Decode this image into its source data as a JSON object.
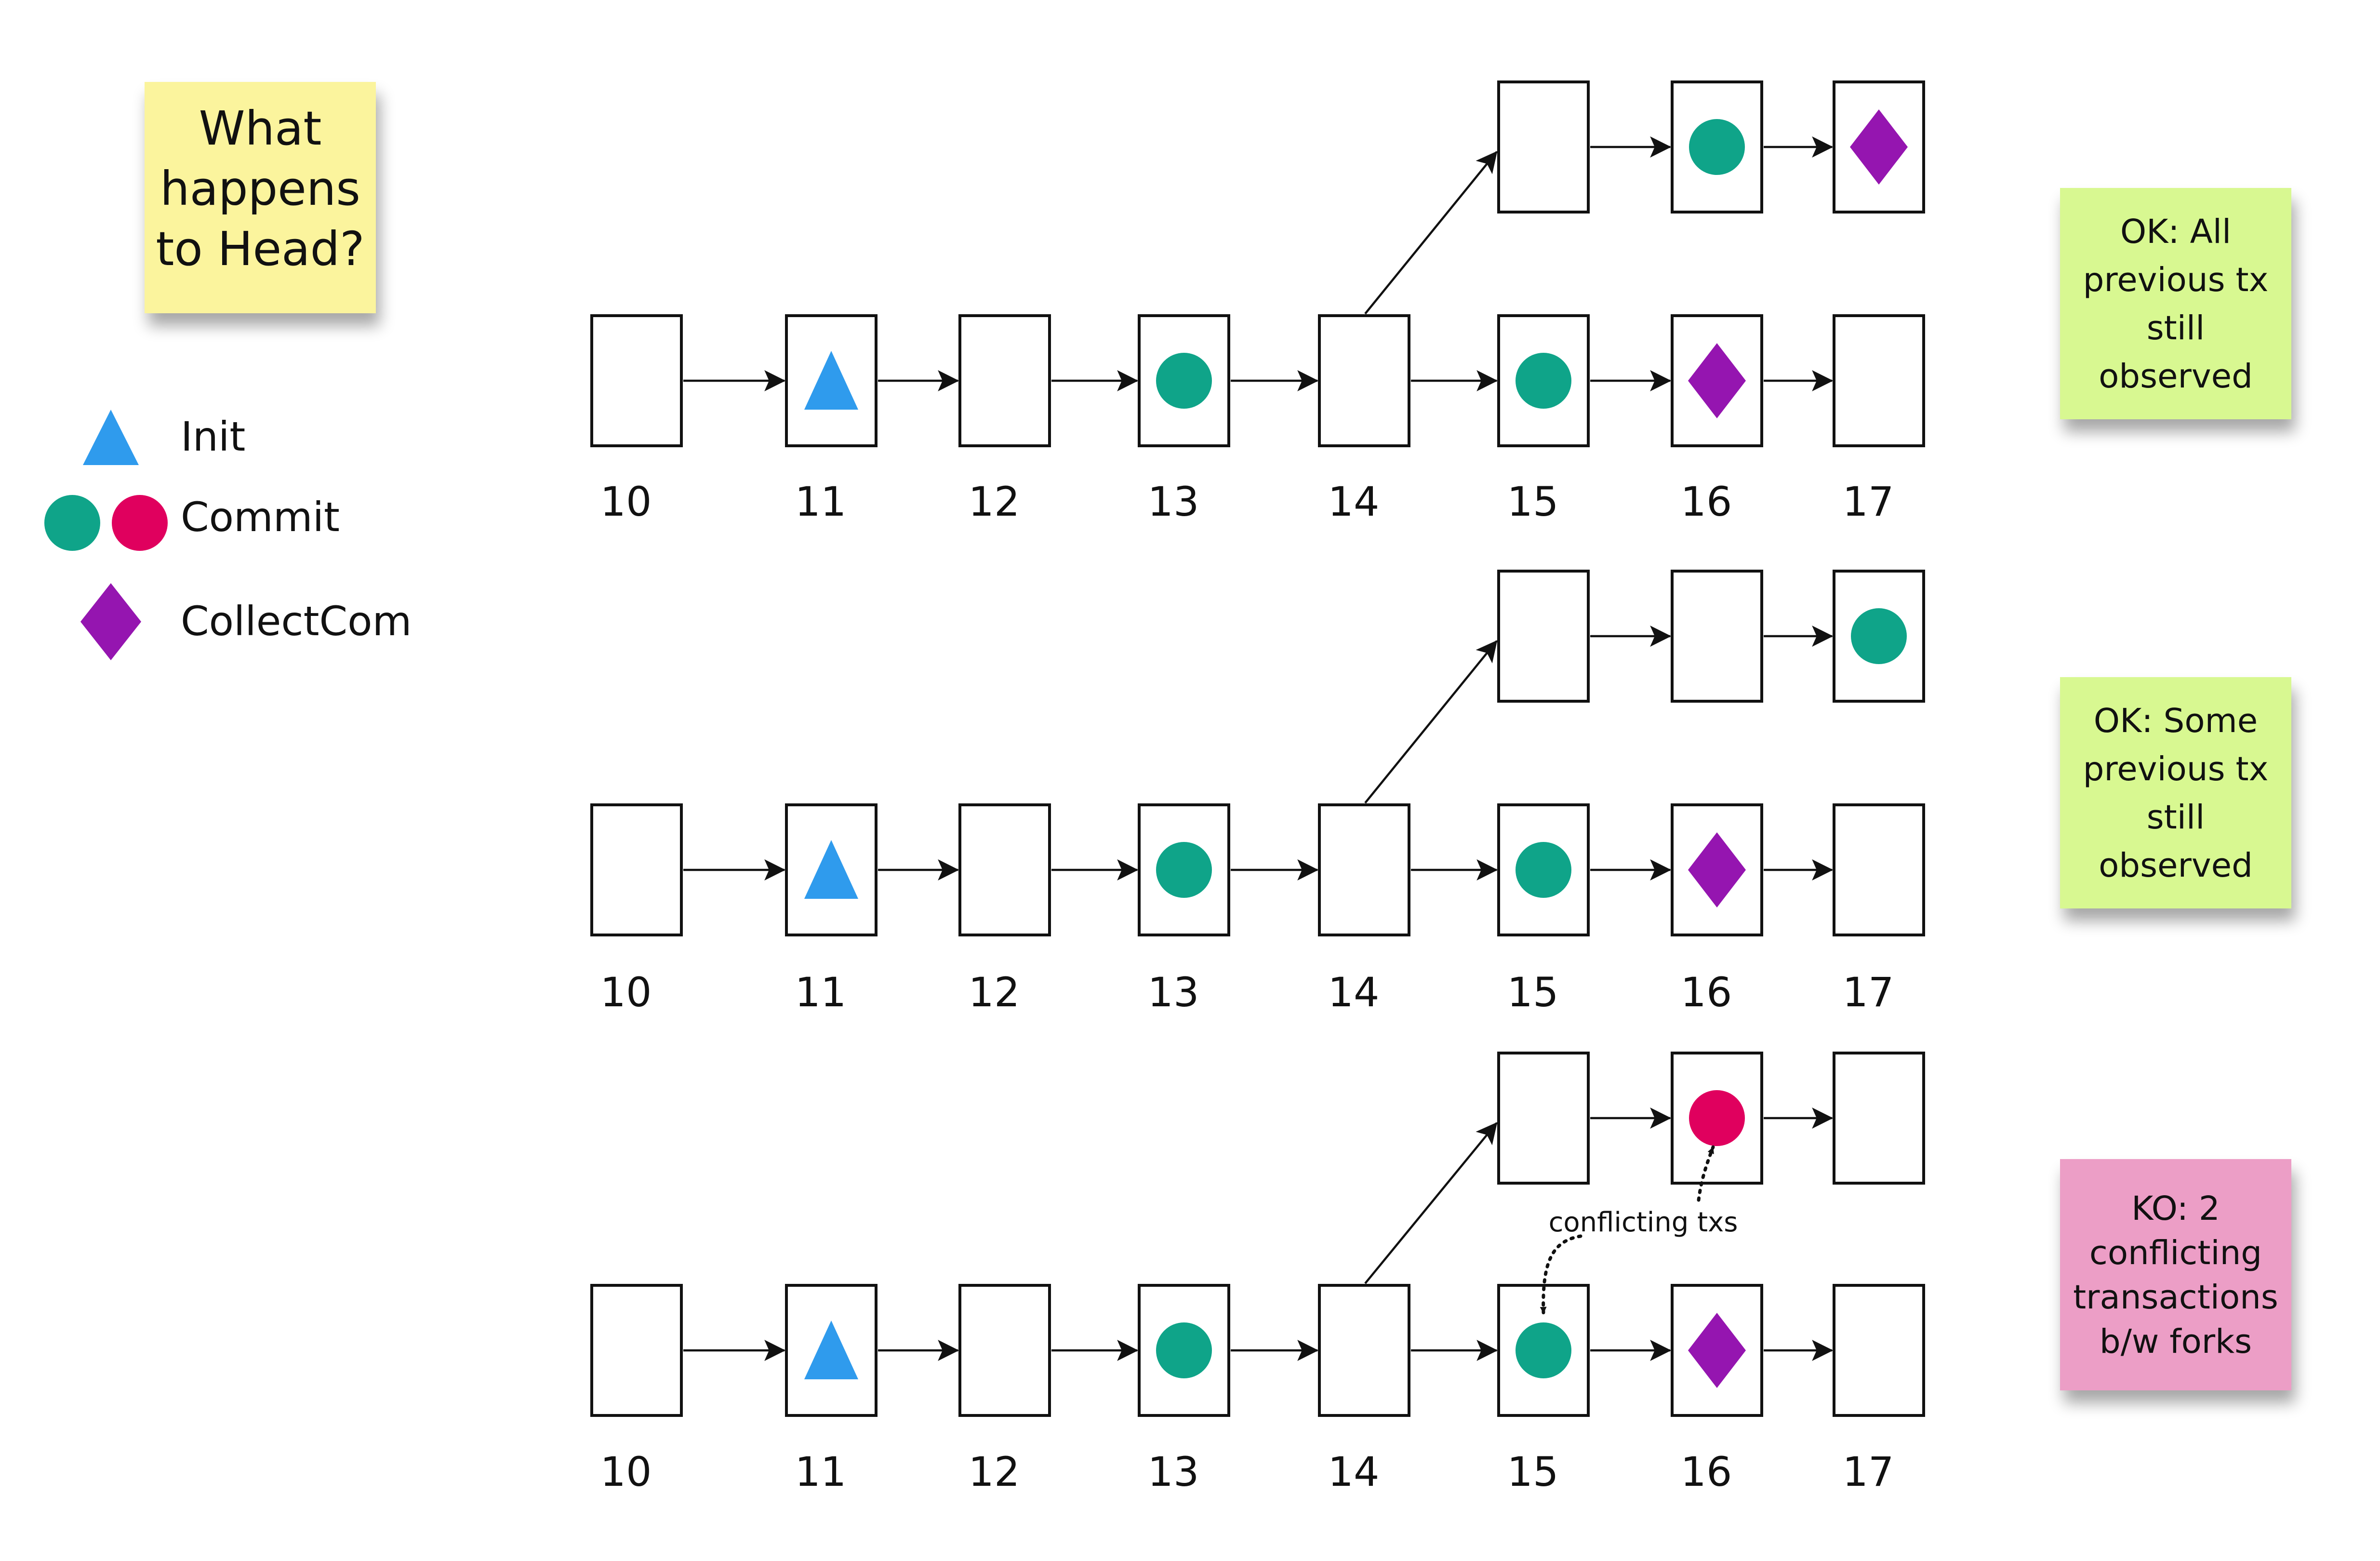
{
  "colors": {
    "init": "#2f9bed",
    "commit": "#0fa489",
    "commit_alt": "#e0005e",
    "collectcom": "#9515b0",
    "note_yellow": "#fbf49d",
    "note_green": "#d8f891",
    "note_pink": "#ec9ec6"
  },
  "header_note": {
    "lines": [
      "What",
      "happens",
      "to Head?"
    ]
  },
  "legend": [
    {
      "label": "Init",
      "icons": [
        "triangle-icon"
      ],
      "colors": [
        "#2f9bed"
      ]
    },
    {
      "label": "Commit",
      "icons": [
        "circle-icon",
        "circle-icon"
      ],
      "colors": [
        "#0fa489",
        "#e0005e"
      ]
    },
    {
      "label": "CollectCom",
      "icons": [
        "diamond-icon"
      ],
      "colors": [
        "#9515b0"
      ]
    }
  ],
  "scenarios": [
    {
      "main_chain": [
        {
          "slot": "10",
          "tx": null
        },
        {
          "slot": "11",
          "tx": "init"
        },
        {
          "slot": "12",
          "tx": null
        },
        {
          "slot": "13",
          "tx": "commit"
        },
        {
          "slot": "14",
          "tx": null
        },
        {
          "slot": "15",
          "tx": "commit"
        },
        {
          "slot": "16",
          "tx": "collectcom"
        },
        {
          "slot": "17",
          "tx": null
        }
      ],
      "fork_from_slot": "14",
      "fork_chain": [
        {
          "slot": "15",
          "tx": null
        },
        {
          "slot": "16",
          "tx": "commit"
        },
        {
          "slot": "17",
          "tx": "collectcom"
        }
      ],
      "outcome": {
        "lines": [
          "OK: All",
          "previous tx",
          "still",
          "observed"
        ],
        "color": "green"
      }
    },
    {
      "main_chain": [
        {
          "slot": "10",
          "tx": null
        },
        {
          "slot": "11",
          "tx": "init"
        },
        {
          "slot": "12",
          "tx": null
        },
        {
          "slot": "13",
          "tx": "commit"
        },
        {
          "slot": "14",
          "tx": null
        },
        {
          "slot": "15",
          "tx": "commit"
        },
        {
          "slot": "16",
          "tx": "collectcom"
        },
        {
          "slot": "17",
          "tx": null
        }
      ],
      "fork_from_slot": "14",
      "fork_chain": [
        {
          "slot": "15",
          "tx": null
        },
        {
          "slot": "16",
          "tx": null
        },
        {
          "slot": "17",
          "tx": "commit"
        }
      ],
      "outcome": {
        "lines": [
          "OK: Some",
          "previous tx",
          "still",
          "observed"
        ],
        "color": "green"
      }
    },
    {
      "main_chain": [
        {
          "slot": "10",
          "tx": null
        },
        {
          "slot": "11",
          "tx": "init"
        },
        {
          "slot": "12",
          "tx": null
        },
        {
          "slot": "13",
          "tx": "commit"
        },
        {
          "slot": "14",
          "tx": null
        },
        {
          "slot": "15",
          "tx": "commit"
        },
        {
          "slot": "16",
          "tx": "collectcom"
        },
        {
          "slot": "17",
          "tx": null
        }
      ],
      "fork_from_slot": "14",
      "fork_chain": [
        {
          "slot": "15",
          "tx": null
        },
        {
          "slot": "16",
          "tx": "commit_alt"
        },
        {
          "slot": "17",
          "tx": null
        }
      ],
      "conflict": {
        "label": "conflicting txs",
        "between": [
          "main slot 15",
          "fork slot 16"
        ]
      },
      "outcome": {
        "lines": [
          "KO: 2",
          "conflicting",
          "transactions",
          "b/w forks"
        ],
        "color": "pink"
      }
    }
  ]
}
